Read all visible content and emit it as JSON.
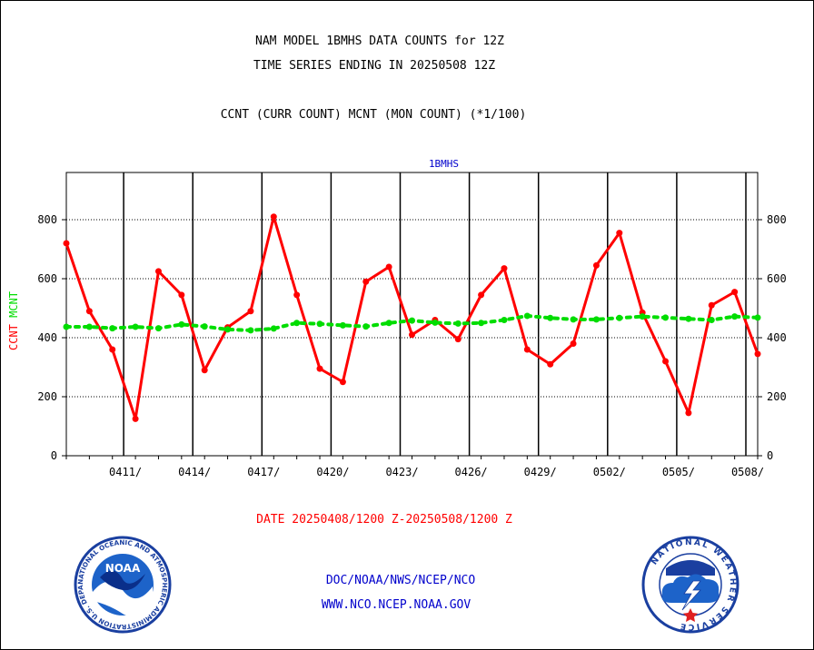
{
  "title_line1": "NAM MODEL 1BMHS DATA COUNTS for 12Z",
  "title_line2": "TIME SERIES ENDING IN 20250508 12Z",
  "legend_line": "CCNT (CURR COUNT) MCNT (MON COUNT) (*1/100)",
  "plot_label": "1BMHS",
  "y_label_ccnt": "CCNT",
  "y_label_mcnt": "MCNT",
  "date_range": "DATE 20250408/1200 Z-20250508/1200 Z",
  "footer_line1": "DOC/NOAA/NWS/NCEP/NCO",
  "footer_line2": "WWW.NCO.NCEP.NOAA.GOV",
  "noaa_logo": {
    "center_text": "NOAA",
    "ring_text": "NATIONAL OCEANIC AND ATMOSPHERIC ADMINISTRATION U.S. DEPARTMENT OF COMMERCE"
  },
  "nws_logo": {
    "ring_text": "NATIONAL WEATHER SERVICE"
  },
  "colors": {
    "ccnt": "#ff0000",
    "mcnt": "#00dd00",
    "title_text": "#000000",
    "plot_label": "#0000cc",
    "footer_text": "#0000cc",
    "date_text": "#ff0000"
  },
  "chart_data": {
    "type": "line",
    "title": "NAM MODEL 1BMHS DATA COUNTS for 12Z",
    "x_tick_labels": [
      "0411/",
      "0414/",
      "0417/",
      "0420/",
      "0423/",
      "0426/",
      "0429/",
      "0502/",
      "0505/",
      "0508/"
    ],
    "x_tick_days": [
      3,
      6,
      9,
      12,
      15,
      18,
      21,
      24,
      27,
      30
    ],
    "x_range_days": [
      0,
      30
    ],
    "y_ticks": [
      0,
      200,
      400,
      600,
      800
    ],
    "ylim": [
      0,
      960
    ],
    "grid": true,
    "series": [
      {
        "name": "CCNT",
        "color": "#ff0000",
        "x_days": [
          0,
          1,
          2,
          3,
          4,
          5,
          6,
          7,
          8,
          9,
          10,
          11,
          12,
          13,
          14,
          15,
          16,
          17,
          18,
          19,
          20,
          21,
          22,
          23,
          24,
          25,
          26,
          27,
          28,
          29,
          30
        ],
        "values": [
          720,
          490,
          360,
          125,
          625,
          545,
          290,
          435,
          490,
          810,
          545,
          295,
          250,
          590,
          640,
          410,
          460,
          395,
          545,
          635,
          360,
          310,
          380,
          645,
          755,
          485,
          320,
          145,
          510,
          555,
          345
        ]
      },
      {
        "name": "MCNT",
        "color": "#00dd00",
        "x_days": [
          0,
          1,
          2,
          3,
          4,
          5,
          6,
          7,
          8,
          9,
          10,
          11,
          12,
          13,
          14,
          15,
          16,
          17,
          18,
          19,
          20,
          21,
          22,
          23,
          24,
          25,
          26,
          27,
          28,
          29,
          30
        ],
        "values": [
          437,
          437,
          432,
          437,
          432,
          445,
          438,
          428,
          425,
          431,
          450,
          447,
          442,
          438,
          450,
          458,
          451,
          448,
          450,
          460,
          474,
          467,
          462,
          462,
          467,
          472,
          468,
          464,
          460,
          472,
          468
        ]
      }
    ]
  }
}
